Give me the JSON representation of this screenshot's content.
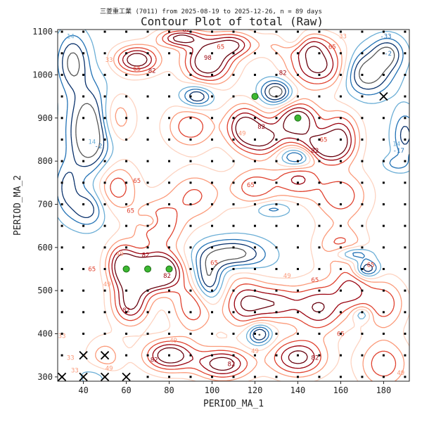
{
  "chart_data": {
    "type": "contour",
    "suptitle": "三菱重工業 (7011) from 2025-08-19 to 2025-12-26, n = 89 days",
    "title": "Contour Plot of total (Raw)",
    "xlabel": "PERIOD_MA_1",
    "ylabel": "PERIOD_MA_2",
    "xlim": [
      28,
      192
    ],
    "ylim": [
      290,
      1105
    ],
    "xticks": [
      40,
      60,
      80,
      100,
      120,
      140,
      160,
      180
    ],
    "yticks": [
      300,
      400,
      500,
      600,
      700,
      800,
      900,
      1000,
      1100
    ],
    "grid_x": [
      30,
      190,
      10
    ],
    "grid_y": [
      300,
      1100,
      50
    ],
    "contour_labels": [
      {
        "x": 34,
        "y": 1085,
        "text": "14"
      },
      {
        "x": 52,
        "y": 1030,
        "text": "33"
      },
      {
        "x": 65,
        "y": 1010,
        "text": "65"
      },
      {
        "x": 72,
        "y": 1005,
        "text": "82"
      },
      {
        "x": 88,
        "y": 1100,
        "text": "82"
      },
      {
        "x": 98,
        "y": 1035,
        "text": "98"
      },
      {
        "x": 104,
        "y": 1060,
        "text": "65"
      },
      {
        "x": 133,
        "y": 1000,
        "text": "82"
      },
      {
        "x": 156,
        "y": 1060,
        "text": "65"
      },
      {
        "x": 161,
        "y": 1085,
        "text": "33"
      },
      {
        "x": 181,
        "y": 1085,
        "text": "-33"
      },
      {
        "x": 182,
        "y": 1045,
        "text": "-2"
      },
      {
        "x": 44,
        "y": 840,
        "text": "14"
      },
      {
        "x": 47,
        "y": 830,
        "text": "-2"
      },
      {
        "x": 114,
        "y": 860,
        "text": "49"
      },
      {
        "x": 123,
        "y": 875,
        "text": "82"
      },
      {
        "x": 152,
        "y": 845,
        "text": "65"
      },
      {
        "x": 148,
        "y": 820,
        "text": "82"
      },
      {
        "x": 186,
        "y": 835,
        "text": "14"
      },
      {
        "x": 187,
        "y": 820,
        "text": "-17"
      },
      {
        "x": 65,
        "y": 750,
        "text": "65"
      },
      {
        "x": 62,
        "y": 680,
        "text": "65"
      },
      {
        "x": 118,
        "y": 740,
        "text": "65"
      },
      {
        "x": 57,
        "y": 580,
        "text": "49"
      },
      {
        "x": 44,
        "y": 545,
        "text": "65"
      },
      {
        "x": 51,
        "y": 510,
        "text": "49"
      },
      {
        "x": 69,
        "y": 578,
        "text": "82"
      },
      {
        "x": 79,
        "y": 530,
        "text": "82"
      },
      {
        "x": 60,
        "y": 450,
        "text": "82"
      },
      {
        "x": 101,
        "y": 560,
        "text": "65"
      },
      {
        "x": 135,
        "y": 530,
        "text": "49"
      },
      {
        "x": 148,
        "y": 520,
        "text": "65"
      },
      {
        "x": 174,
        "y": 555,
        "text": "65"
      },
      {
        "x": 30,
        "y": 390,
        "text": "33"
      },
      {
        "x": 34,
        "y": 340,
        "text": "33"
      },
      {
        "x": 36,
        "y": 310,
        "text": "33"
      },
      {
        "x": 52,
        "y": 315,
        "text": "49"
      },
      {
        "x": 73,
        "y": 335,
        "text": "82"
      },
      {
        "x": 82,
        "y": 380,
        "text": "49"
      },
      {
        "x": 109,
        "y": 325,
        "text": "82"
      },
      {
        "x": 120,
        "y": 355,
        "text": "49"
      },
      {
        "x": 148,
        "y": 340,
        "text": "82"
      },
      {
        "x": 160,
        "y": 395,
        "text": "65"
      },
      {
        "x": 188,
        "y": 305,
        "text": "49"
      }
    ],
    "markers": {
      "green_points": [
        [
          60,
          550
        ],
        [
          70,
          550
        ],
        [
          80,
          550
        ],
        [
          120,
          950
        ],
        [
          140,
          900
        ]
      ],
      "x_marks": [
        [
          30,
          300
        ],
        [
          40,
          300
        ],
        [
          50,
          300
        ],
        [
          60,
          300
        ],
        [
          40,
          350
        ],
        [
          50,
          350
        ],
        [
          180,
          950
        ]
      ]
    }
  },
  "colors": {
    "positive_dark": "#99000d",
    "positive_mid": "#e0412e",
    "positive_light": "#fb9a7a",
    "positive_pale": "#fdd3c1",
    "negative_dark": "#08306b",
    "negative_mid": "#2171b5",
    "negative_light": "#6baed6",
    "negative_pale": "#a6cde6",
    "gray": "#555555",
    "green": "#3cb832",
    "grid_dot": "#000000"
  }
}
